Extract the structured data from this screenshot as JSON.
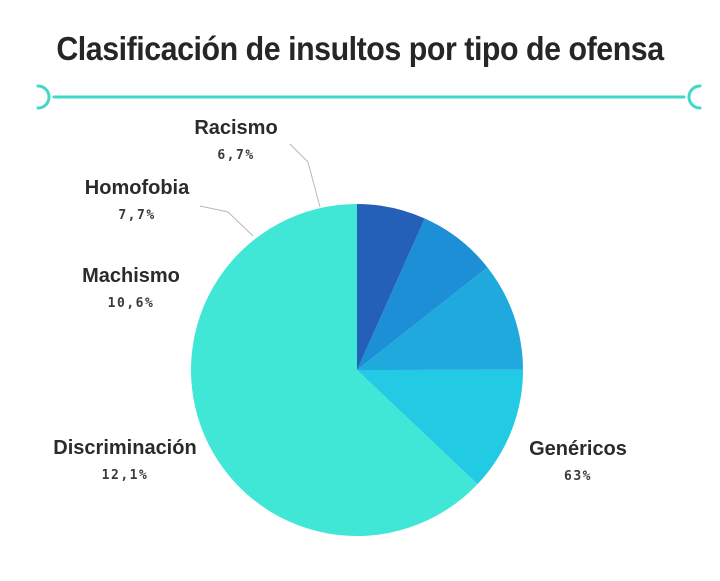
{
  "colors": {
    "accent": "#40d8c8",
    "title": "#262626",
    "text": "#2b2b2b",
    "leader": "#b8b8b8"
  },
  "chart_data": {
    "type": "pie",
    "title": "Clasificación de insultos por tipo de ofensa",
    "slices": [
      {
        "label": "Genéricos",
        "value_label": "63%",
        "value": 63,
        "color": "#40e6d6",
        "label_side": "right"
      },
      {
        "label": "Discriminación",
        "value_label": "12,1%",
        "value": 12.1,
        "color": "#22cbe3",
        "label_side": "left"
      },
      {
        "label": "Machismo",
        "value_label": "10,6%",
        "value": 10.6,
        "color": "#1fa9dd",
        "label_side": "left"
      },
      {
        "label": "Homofobia",
        "value_label": "7,7%",
        "value": 7.7,
        "color": "#1c8fd6",
        "label_side": "left"
      },
      {
        "label": "Racismo",
        "value_label": "6,7%",
        "value": 6.7,
        "color": "#2460b8",
        "label_side": "left"
      }
    ],
    "start": "top",
    "direction": "clockwise",
    "legend": "none"
  }
}
